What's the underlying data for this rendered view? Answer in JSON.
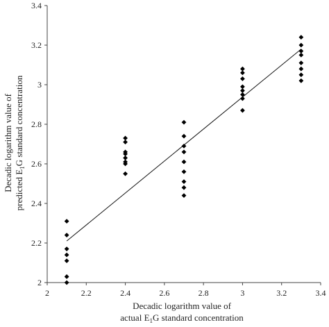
{
  "chart_data": {
    "type": "scatter",
    "title": "",
    "xlabel_line1": "Decadic logarithm value of",
    "xlabel_line2_pre": "actual E",
    "xlabel_line2_sub": "1",
    "xlabel_line2_post": "G standard concentration",
    "ylabel_line1": "Decadic logarithm value of",
    "ylabel_line2_pre": "predicted E",
    "ylabel_line2_sub": "1",
    "ylabel_line2_post": "G standard concentration",
    "xlim": [
      2,
      3.4
    ],
    "ylim": [
      2,
      3.4
    ],
    "x_ticks": [
      "2",
      "2.2",
      "2.4",
      "2.6",
      "2.8",
      "3",
      "3.2",
      "3.4"
    ],
    "y_ticks": [
      "2",
      "2.2",
      "2.4",
      "2.6",
      "2.8",
      "3",
      "3.2",
      "3.4"
    ],
    "grid": false,
    "marker": "diamond",
    "marker_color": "#000000",
    "points": [
      {
        "x": 2.1,
        "y": 2.31
      },
      {
        "x": 2.1,
        "y": 2.24
      },
      {
        "x": 2.1,
        "y": 2.17
      },
      {
        "x": 2.1,
        "y": 2.14
      },
      {
        "x": 2.1,
        "y": 2.11
      },
      {
        "x": 2.1,
        "y": 2.03
      },
      {
        "x": 2.1,
        "y": 2.0
      },
      {
        "x": 2.4,
        "y": 2.73
      },
      {
        "x": 2.4,
        "y": 2.71
      },
      {
        "x": 2.4,
        "y": 2.66
      },
      {
        "x": 2.4,
        "y": 2.65
      },
      {
        "x": 2.4,
        "y": 2.63
      },
      {
        "x": 2.4,
        "y": 2.61
      },
      {
        "x": 2.4,
        "y": 2.6
      },
      {
        "x": 2.4,
        "y": 2.55
      },
      {
        "x": 2.7,
        "y": 2.81
      },
      {
        "x": 2.7,
        "y": 2.74
      },
      {
        "x": 2.7,
        "y": 2.69
      },
      {
        "x": 2.7,
        "y": 2.66
      },
      {
        "x": 2.7,
        "y": 2.61
      },
      {
        "x": 2.7,
        "y": 2.56
      },
      {
        "x": 2.7,
        "y": 2.51
      },
      {
        "x": 2.7,
        "y": 2.48
      },
      {
        "x": 2.7,
        "y": 2.44
      },
      {
        "x": 3.0,
        "y": 3.08
      },
      {
        "x": 3.0,
        "y": 3.06
      },
      {
        "x": 3.0,
        "y": 3.03
      },
      {
        "x": 3.0,
        "y": 2.99
      },
      {
        "x": 3.0,
        "y": 2.97
      },
      {
        "x": 3.0,
        "y": 2.95
      },
      {
        "x": 3.0,
        "y": 2.93
      },
      {
        "x": 3.0,
        "y": 2.87
      },
      {
        "x": 3.3,
        "y": 3.24
      },
      {
        "x": 3.3,
        "y": 3.2
      },
      {
        "x": 3.3,
        "y": 3.17
      },
      {
        "x": 3.3,
        "y": 3.15
      },
      {
        "x": 3.3,
        "y": 3.11
      },
      {
        "x": 3.3,
        "y": 3.08
      },
      {
        "x": 3.3,
        "y": 3.05
      },
      {
        "x": 3.3,
        "y": 3.02
      }
    ],
    "trendline": {
      "x": [
        2.1,
        3.3
      ],
      "y": [
        2.21,
        3.18
      ]
    }
  }
}
